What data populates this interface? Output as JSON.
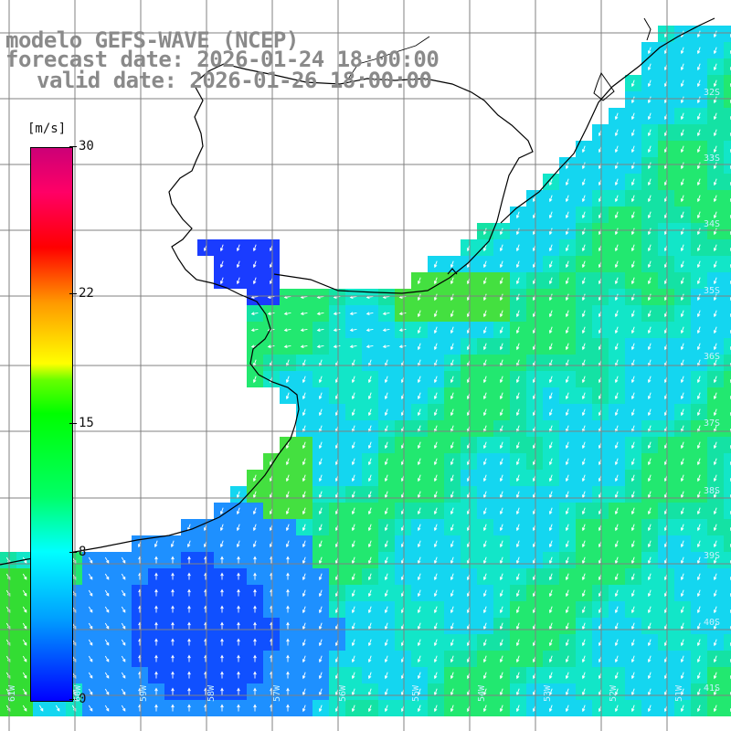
{
  "title": {
    "model": "modelo GEFS-WAVE (NCEP)",
    "forecast": "forecast date: 2026-01-24 18:00:00",
    "valid": "valid date: 2026-01-26 18:00:00"
  },
  "colorbar": {
    "units": "[m/s]",
    "ticks": [
      "30",
      "22",
      "15",
      "8",
      "0"
    ],
    "tick_values": [
      30,
      22,
      15,
      8,
      0
    ],
    "min": 0,
    "max": 30
  },
  "lat_labels": [
    "32S",
    "33S",
    "34S",
    "35S",
    "36S",
    "37S",
    "38S",
    "39S",
    "40S",
    "41S"
  ],
  "lon_labels": [
    "61W",
    "60W",
    "59W",
    "58W",
    "57W",
    "56W",
    "55W",
    "54W",
    "53W",
    "52W",
    "51W"
  ],
  "colors": {
    "land": "#ffffff",
    "grid": "#808080",
    "coast": "#000000",
    "arrow": "#ffffff",
    "title": "#8a8a8a"
  }
}
